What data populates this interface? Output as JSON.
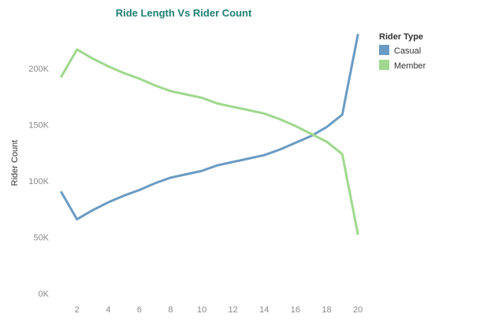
{
  "chart_data": {
    "type": "line",
    "title": "Ride Length Vs Rider Count",
    "xlabel": "",
    "ylabel": "Rider Count",
    "x": [
      1,
      2,
      3,
      4,
      5,
      6,
      7,
      8,
      9,
      10,
      11,
      12,
      13,
      14,
      15,
      16,
      17,
      18,
      19,
      20
    ],
    "xticks": [
      "2",
      "4",
      "6",
      "8",
      "10",
      "12",
      "14",
      "16",
      "18",
      "20"
    ],
    "xtick_values": [
      2,
      4,
      6,
      8,
      10,
      12,
      14,
      16,
      18,
      20
    ],
    "xlim": [
      0.3,
      20.5
    ],
    "yticks": [
      "0K",
      "50K",
      "100K",
      "150K",
      "200K"
    ],
    "ytick_values": [
      0,
      50000,
      100000,
      150000,
      200000
    ],
    "ylim": [
      0,
      240000
    ],
    "grid": false,
    "legend": {
      "title": "Rider Type",
      "position": "top-right"
    },
    "series": [
      {
        "name": "Casual",
        "color": "#6b9bc3",
        "values": [
          90000,
          66000,
          74000,
          81000,
          87000,
          92000,
          98000,
          103000,
          106000,
          109000,
          114000,
          117000,
          120000,
          123000,
          128000,
          134000,
          140000,
          148000,
          159000,
          230000
        ]
      },
      {
        "name": "Member",
        "color": "#9fd88e",
        "values": [
          193000,
          217000,
          209000,
          202000,
          196000,
          191000,
          185000,
          180000,
          177000,
          174000,
          169000,
          166000,
          163000,
          160000,
          155000,
          149000,
          142000,
          135000,
          124000,
          53000
        ]
      }
    ]
  },
  "colors": {
    "title": "#1f7f74",
    "tick_text": "#8a8a8a",
    "label_text": "#333333"
  }
}
